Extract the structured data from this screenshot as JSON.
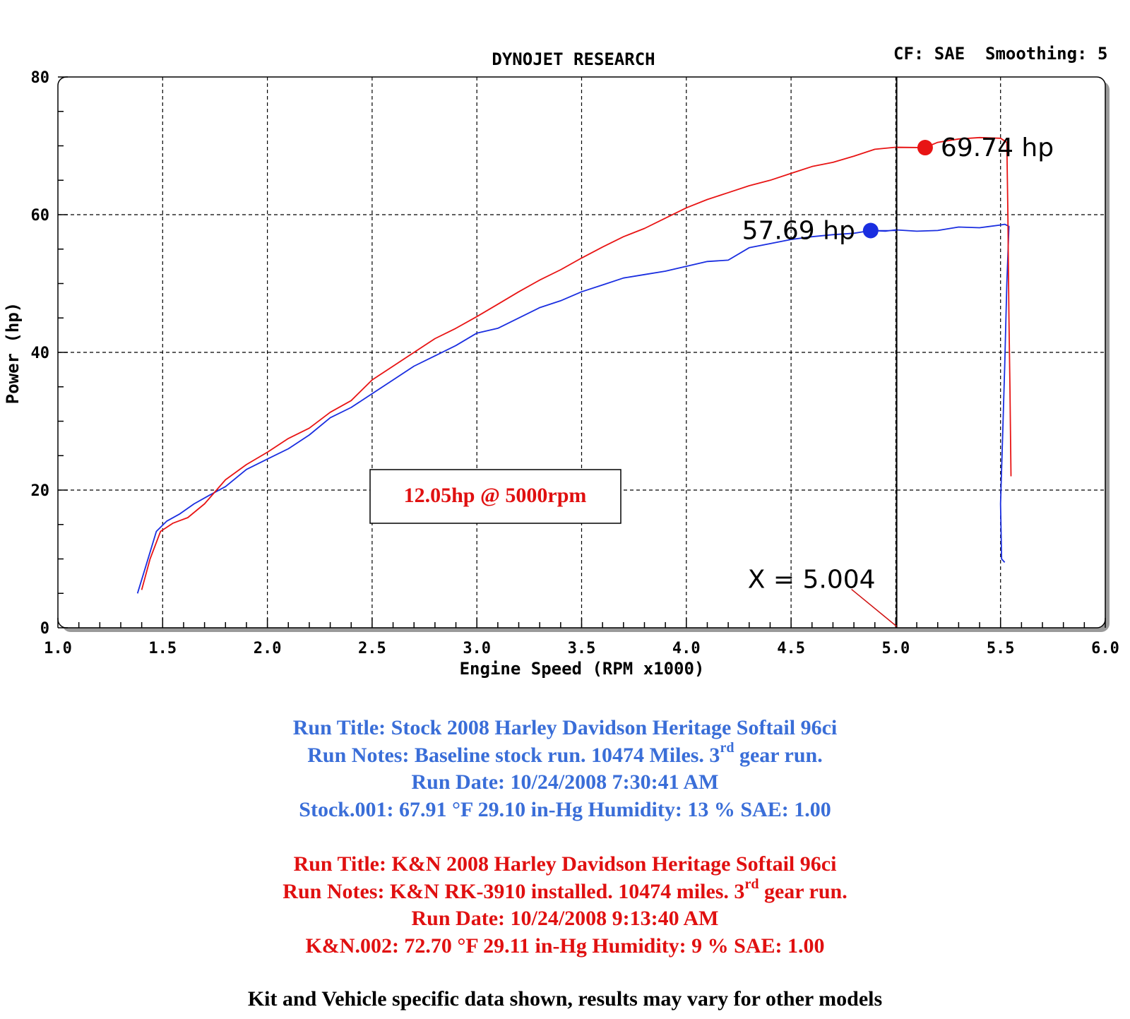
{
  "header": {
    "title": "DYNOJET RESEARCH",
    "cf": "CF: SAE",
    "smoothing": "Smoothing: 5"
  },
  "chart_data": {
    "type": "line",
    "title": "DYNOJET RESEARCH",
    "xlabel": "Engine Speed (RPM x1000)",
    "ylabel": "Power (hp)",
    "xlim": [
      1.0,
      6.0
    ],
    "ylim": [
      0,
      80
    ],
    "x_ticks": [
      "1.0",
      "1.5",
      "2.0",
      "2.5",
      "3.0",
      "3.5",
      "4.0",
      "4.5",
      "5.0",
      "5.5",
      "6.0"
    ],
    "y_ticks": [
      "0",
      "20",
      "40",
      "60",
      "80"
    ],
    "grid": true,
    "cursor": {
      "x": 5.004,
      "label": "X = 5.004"
    },
    "colors": {
      "stock": "#1a2ee0",
      "kn": "#e81414"
    },
    "series": [
      {
        "name": "Stock",
        "color": "#1a2ee0",
        "points": [
          [
            1.38,
            5
          ],
          [
            1.42,
            9
          ],
          [
            1.47,
            14
          ],
          [
            1.52,
            15.5
          ],
          [
            1.58,
            16.5
          ],
          [
            1.65,
            18
          ],
          [
            1.72,
            19.2
          ],
          [
            1.8,
            20.5
          ],
          [
            1.9,
            23
          ],
          [
            2.0,
            24.5
          ],
          [
            2.1,
            26
          ],
          [
            2.2,
            28
          ],
          [
            2.3,
            30.5
          ],
          [
            2.4,
            32
          ],
          [
            2.5,
            34
          ],
          [
            2.6,
            36
          ],
          [
            2.7,
            38
          ],
          [
            2.8,
            39.5
          ],
          [
            2.9,
            41
          ],
          [
            3.0,
            42.8
          ],
          [
            3.1,
            43.5
          ],
          [
            3.2,
            45
          ],
          [
            3.3,
            46.5
          ],
          [
            3.4,
            47.5
          ],
          [
            3.5,
            48.8
          ],
          [
            3.6,
            49.8
          ],
          [
            3.7,
            50.8
          ],
          [
            3.8,
            51.3
          ],
          [
            3.9,
            51.8
          ],
          [
            4.0,
            52.5
          ],
          [
            4.1,
            53.2
          ],
          [
            4.2,
            53.4
          ],
          [
            4.3,
            55.2
          ],
          [
            4.4,
            55.8
          ],
          [
            4.5,
            56.4
          ],
          [
            4.6,
            56.8
          ],
          [
            4.7,
            57.1
          ],
          [
            4.8,
            57.3
          ],
          [
            4.88,
            57.69
          ],
          [
            4.95,
            57.6
          ],
          [
            5.0,
            57.8
          ],
          [
            5.1,
            57.6
          ],
          [
            5.2,
            57.7
          ],
          [
            5.3,
            58.2
          ],
          [
            5.4,
            58.1
          ],
          [
            5.5,
            58.5
          ],
          [
            5.52,
            58.6
          ],
          [
            5.54,
            58.3
          ],
          [
            5.53,
            50
          ],
          [
            5.52,
            38
          ],
          [
            5.51,
            28
          ],
          [
            5.5,
            18
          ],
          [
            5.505,
            10
          ],
          [
            5.52,
            9.5
          ]
        ]
      },
      {
        "name": "K&N",
        "color": "#e81414",
        "points": [
          [
            1.4,
            5.5
          ],
          [
            1.44,
            10
          ],
          [
            1.49,
            14
          ],
          [
            1.55,
            15.2
          ],
          [
            1.62,
            16
          ],
          [
            1.7,
            18
          ],
          [
            1.8,
            21.5
          ],
          [
            1.9,
            23.7
          ],
          [
            2.0,
            25.5
          ],
          [
            2.1,
            27.5
          ],
          [
            2.2,
            29
          ],
          [
            2.3,
            31.3
          ],
          [
            2.4,
            33
          ],
          [
            2.5,
            36
          ],
          [
            2.6,
            38
          ],
          [
            2.7,
            40
          ],
          [
            2.8,
            42
          ],
          [
            2.9,
            43.5
          ],
          [
            3.0,
            45.2
          ],
          [
            3.1,
            47
          ],
          [
            3.2,
            48.8
          ],
          [
            3.3,
            50.5
          ],
          [
            3.4,
            52
          ],
          [
            3.5,
            53.7
          ],
          [
            3.6,
            55.3
          ],
          [
            3.7,
            56.8
          ],
          [
            3.8,
            58
          ],
          [
            3.9,
            59.5
          ],
          [
            4.0,
            61
          ],
          [
            4.1,
            62.2
          ],
          [
            4.2,
            63.2
          ],
          [
            4.3,
            64.2
          ],
          [
            4.4,
            65
          ],
          [
            4.5,
            66
          ],
          [
            4.6,
            67
          ],
          [
            4.7,
            67.6
          ],
          [
            4.8,
            68.5
          ],
          [
            4.9,
            69.5
          ],
          [
            5.0,
            69.8
          ],
          [
            5.14,
            69.74
          ],
          [
            5.2,
            70.5
          ],
          [
            5.3,
            71
          ],
          [
            5.4,
            71.2
          ],
          [
            5.5,
            71.1
          ],
          [
            5.53,
            70.5
          ],
          [
            5.535,
            60
          ],
          [
            5.54,
            45
          ],
          [
            5.545,
            35
          ],
          [
            5.55,
            22
          ]
        ]
      }
    ],
    "annotations": [
      {
        "series": "K&N",
        "x": 5.14,
        "y": 69.74,
        "label": "69.74 hp"
      },
      {
        "series": "Stock",
        "x": 4.88,
        "y": 57.69,
        "label": "57.69 hp"
      }
    ],
    "callout": "12.05hp @ 5000rpm"
  },
  "notes": {
    "stock": {
      "title": "Run Title: Stock 2008 Harley Davidson Heritage Softail 96ci",
      "notes_pre": "Run Notes: Baseline stock run. 10474 Miles. 3",
      "notes_sup": "rd",
      "notes_post": " gear run.",
      "date": "Run Date: 10/24/2008 7:30:41 AM",
      "conditions": "Stock.001: 67.91 °F 29.10 in-Hg Humidity: 13 % SAE: 1.00"
    },
    "kn": {
      "title": "Run Title: K&N 2008 Harley Davidson Heritage Softail 96ci",
      "notes_pre": "Run Notes: K&N RK-3910 installed. 10474 miles. 3",
      "notes_sup": "rd",
      "notes_post": " gear run.",
      "date": "Run Date: 10/24/2008 9:13:40 AM",
      "conditions": "K&N.002: 72.70 °F 29.11 in-Hg Humidity: 9 % SAE: 1.00"
    },
    "disclaimer": "Kit and Vehicle specific data shown, results may vary for other models"
  }
}
